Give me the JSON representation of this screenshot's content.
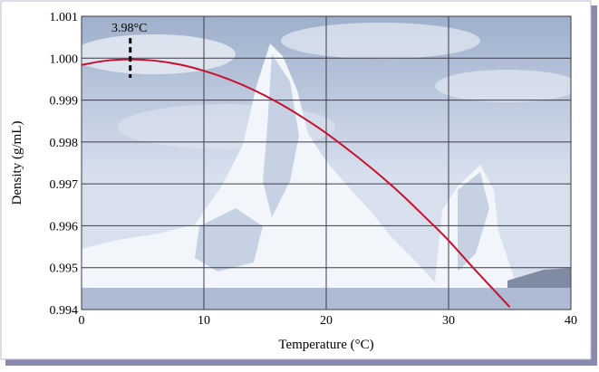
{
  "chart_data": {
    "type": "line",
    "xlabel": "Temperature (°C)",
    "ylabel": "Density (g/mL)",
    "xlim": [
      0,
      40
    ],
    "ylim": [
      0.994,
      1.001
    ],
    "x_ticks": [
      "0",
      "10",
      "20",
      "30",
      "40"
    ],
    "y_ticks": [
      "0.994",
      "0.995",
      "0.996",
      "0.997",
      "0.998",
      "0.999",
      "1.000",
      "1.001"
    ],
    "grid": true,
    "series": [
      {
        "color": "#c8102e",
        "x": [
          0,
          2,
          3.98,
          6,
          8,
          10,
          12,
          14,
          16,
          18,
          20,
          22,
          24,
          26,
          28,
          30,
          32,
          35
        ],
        "values": [
          0.99984,
          0.99994,
          0.99997,
          0.99994,
          0.99985,
          0.9997,
          0.9995,
          0.99925,
          0.99895,
          0.9986,
          0.99821,
          0.99777,
          0.9973,
          0.99679,
          0.99623,
          0.99565,
          0.995,
          0.99406
        ]
      }
    ],
    "annotation": {
      "text": "3.98°C",
      "x": 3.98,
      "y_from": 0.99953,
      "y_to": 1.00048
    }
  },
  "colors": {
    "frame_shadow": "#8a8ab0",
    "sky_top": "#9fb0cc",
    "sky_mid": "#d8e0ee",
    "ice": "#f2f6fb",
    "ice_shadow": "#c6d2e4",
    "water": "#aebbd2",
    "grid": "#3b3b4a",
    "curve": "#c8102e"
  }
}
